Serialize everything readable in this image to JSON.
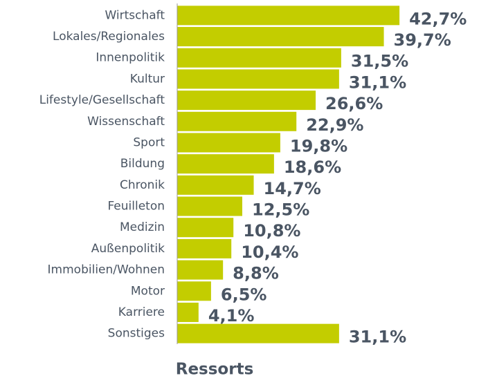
{
  "chart_data": {
    "type": "bar",
    "orientation": "horizontal",
    "x_label": "Ressorts",
    "categories": [
      "Wirtschaft",
      "Lokales/Regionales",
      "Innenpolitik",
      "Kultur",
      "Lifestyle/Gesellschaft",
      "Wissenschaft",
      "Sport",
      "Bildung",
      "Chronik",
      "Feuilleton",
      "Medizin",
      "Außenpolitik",
      "Immobilien/Wohnen",
      "Motor",
      "Karriere",
      "Sonstiges"
    ],
    "values": [
      42.7,
      39.7,
      31.5,
      31.1,
      26.6,
      22.9,
      19.8,
      18.6,
      14.7,
      12.5,
      10.8,
      10.4,
      8.8,
      6.5,
      4.1,
      31.1
    ],
    "value_labels": [
      "42,7%",
      "39,7%",
      "31,5%",
      "31,1%",
      "26,6%",
      "22,9%",
      "19,8%",
      "18,6%",
      "14,7%",
      "12,5%",
      "10,8%",
      "10,4%",
      "8,8%",
      "6,5%",
      "4,1%",
      "31,1%"
    ],
    "color": "#c3cd00",
    "xlim": [
      0,
      50
    ]
  }
}
